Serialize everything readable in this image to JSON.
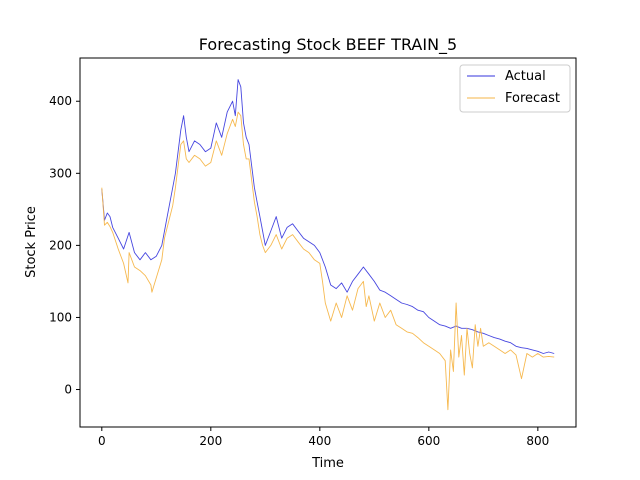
{
  "chart_data": {
    "type": "line",
    "title": "Forecasting Stock BEEF TRAIN_5",
    "xlabel": "Time",
    "ylabel": "Stock Price",
    "xlim": [
      -40,
      870
    ],
    "ylim": [
      -52,
      460
    ],
    "xticks": [
      0,
      200,
      400,
      600,
      800
    ],
    "yticks": [
      0,
      100,
      200,
      300,
      400
    ],
    "grid": false,
    "legend": "top-right",
    "colors": {
      "actual": "#3333dd",
      "forecast": "#f5b547"
    },
    "series": [
      {
        "name": "Actual",
        "x": [
          0,
          5,
          10,
          15,
          20,
          30,
          40,
          50,
          60,
          70,
          80,
          90,
          100,
          110,
          115,
          120,
          130,
          135,
          140,
          145,
          150,
          155,
          160,
          170,
          180,
          190,
          200,
          210,
          220,
          230,
          240,
          245,
          250,
          255,
          260,
          265,
          270,
          275,
          280,
          285,
          290,
          295,
          300,
          310,
          320,
          330,
          340,
          350,
          360,
          370,
          380,
          390,
          400,
          410,
          420,
          430,
          440,
          450,
          460,
          470,
          480,
          490,
          500,
          510,
          520,
          530,
          540,
          550,
          560,
          570,
          580,
          590,
          600,
          610,
          620,
          630,
          640,
          650,
          660,
          670,
          680,
          690,
          700,
          710,
          720,
          730,
          740,
          750,
          760,
          770,
          780,
          790,
          800,
          810,
          820,
          830
        ],
        "values": [
          278,
          235,
          245,
          240,
          225,
          210,
          195,
          218,
          190,
          180,
          190,
          180,
          185,
          200,
          220,
          240,
          280,
          300,
          330,
          360,
          380,
          350,
          330,
          345,
          340,
          330,
          335,
          370,
          350,
          385,
          400,
          380,
          430,
          420,
          370,
          350,
          340,
          310,
          280,
          260,
          240,
          220,
          200,
          220,
          240,
          210,
          225,
          230,
          220,
          210,
          205,
          200,
          190,
          170,
          145,
          140,
          148,
          135,
          150,
          160,
          170,
          160,
          150,
          138,
          135,
          130,
          125,
          120,
          118,
          115,
          110,
          108,
          100,
          95,
          90,
          88,
          85,
          88,
          85,
          85,
          83,
          80,
          78,
          75,
          72,
          70,
          67,
          65,
          60,
          58,
          57,
          55,
          53,
          50,
          52,
          50
        ]
      },
      {
        "name": "Forecast",
        "x": [
          0,
          5,
          10,
          15,
          20,
          30,
          40,
          48,
          50,
          60,
          70,
          80,
          90,
          92,
          100,
          110,
          115,
          120,
          130,
          135,
          140,
          145,
          150,
          155,
          160,
          170,
          180,
          190,
          200,
          210,
          220,
          230,
          240,
          245,
          250,
          255,
          260,
          265,
          270,
          275,
          280,
          285,
          290,
          295,
          300,
          310,
          320,
          330,
          340,
          350,
          360,
          370,
          380,
          390,
          400,
          405,
          410,
          420,
          430,
          440,
          450,
          460,
          470,
          480,
          485,
          490,
          500,
          510,
          520,
          530,
          540,
          550,
          560,
          570,
          580,
          590,
          600,
          610,
          620,
          630,
          635,
          640,
          645,
          650,
          655,
          660,
          665,
          670,
          675,
          680,
          685,
          690,
          695,
          700,
          710,
          720,
          730,
          740,
          750,
          760,
          770,
          780,
          790,
          800,
          810,
          820,
          830
        ],
        "values": [
          280,
          228,
          232,
          226,
          218,
          195,
          175,
          148,
          190,
          170,
          165,
          158,
          145,
          135,
          155,
          180,
          210,
          225,
          255,
          280,
          310,
          340,
          345,
          320,
          315,
          325,
          320,
          310,
          315,
          345,
          325,
          355,
          375,
          365,
          385,
          380,
          340,
          320,
          320,
          290,
          260,
          240,
          215,
          200,
          190,
          200,
          215,
          195,
          210,
          215,
          205,
          195,
          190,
          180,
          175,
          150,
          120,
          95,
          120,
          100,
          130,
          110,
          140,
          150,
          115,
          130,
          95,
          120,
          100,
          110,
          90,
          85,
          80,
          78,
          72,
          65,
          60,
          55,
          50,
          40,
          -28,
          55,
          25,
          120,
          45,
          75,
          20,
          85,
          50,
          30,
          90,
          60,
          85,
          60,
          65,
          60,
          55,
          50,
          55,
          48,
          15,
          50,
          45,
          50,
          45,
          46,
          45
        ]
      }
    ]
  }
}
